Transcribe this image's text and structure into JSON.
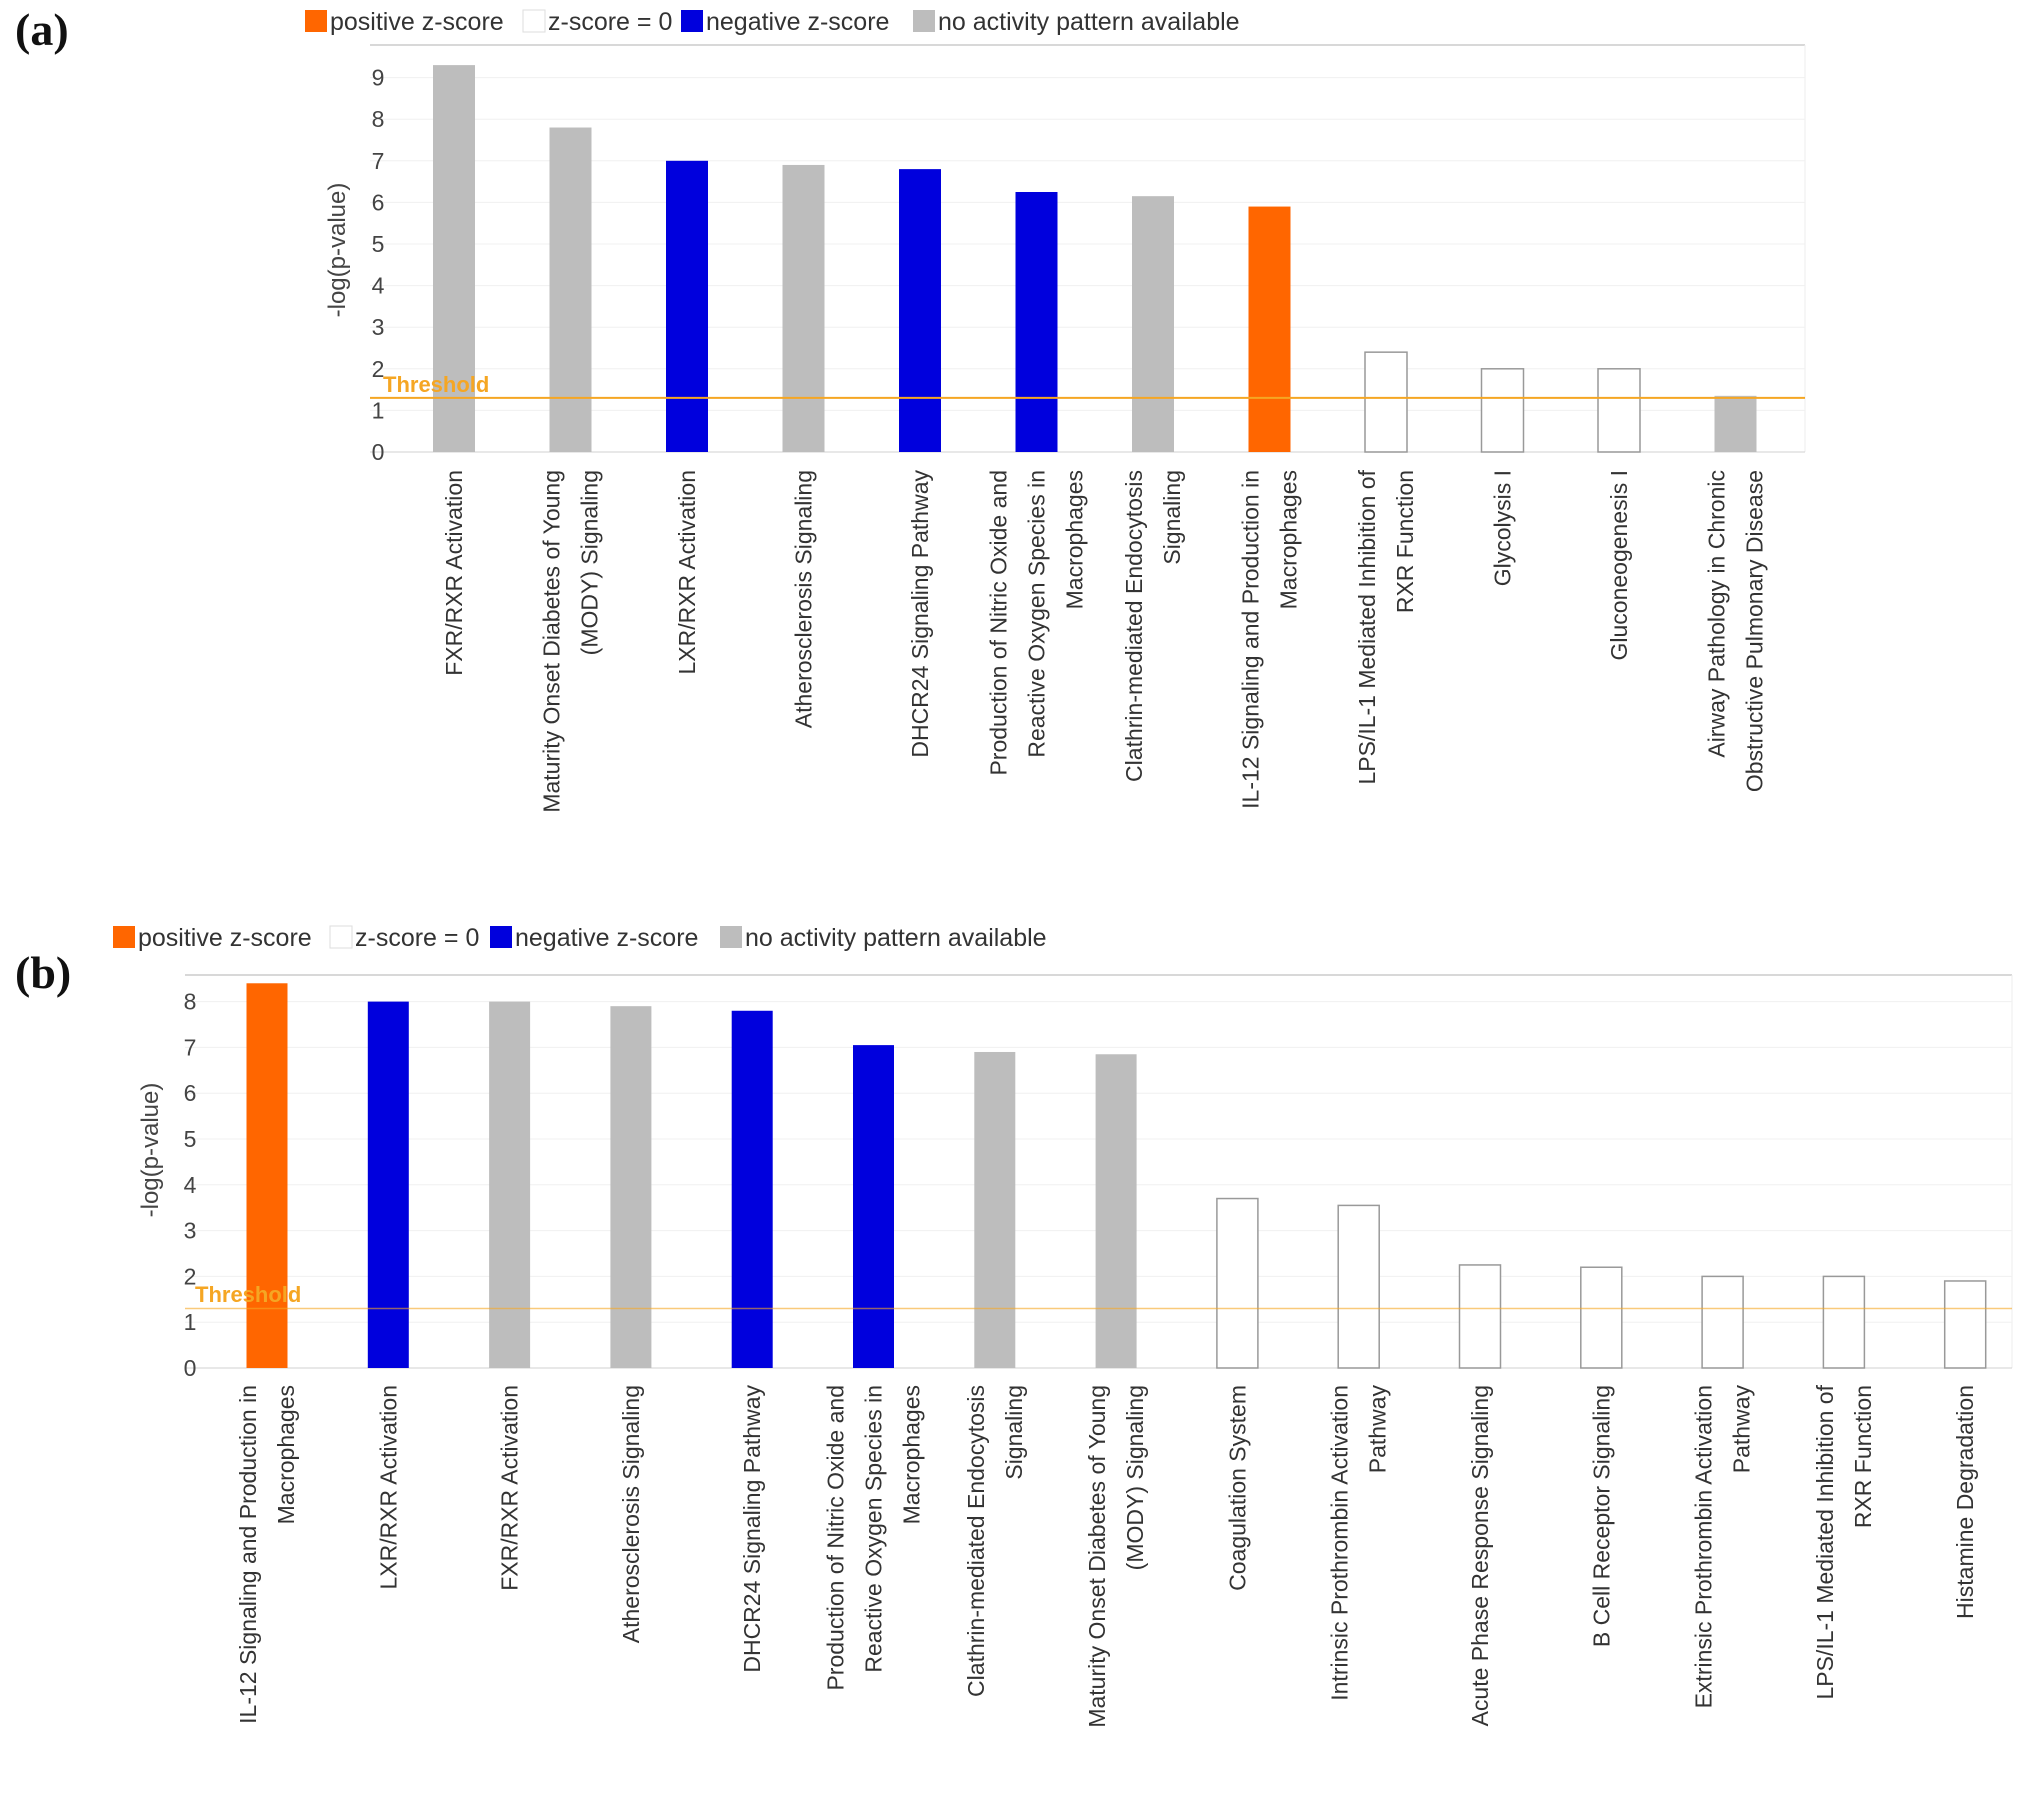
{
  "colors": {
    "positive": "#ff6600",
    "negative": "#0000dd",
    "none": "#bdbdbd",
    "zero_fill": "#ffffff",
    "zero_stroke": "#999999",
    "threshold": "#f5a623"
  },
  "chart_data": [
    {
      "panel_label": "(a)",
      "type": "bar",
      "legend": [
        {
          "key": "positive",
          "label": "positive z-score"
        },
        {
          "key": "zero",
          "label": "z-score = 0"
        },
        {
          "key": "negative",
          "label": "negative z-score"
        },
        {
          "key": "none",
          "label": "no activity pattern available"
        }
      ],
      "ylabel": "-log(p-value)",
      "ylim": [
        0,
        9.5
      ],
      "yticks": [
        "0",
        "1",
        "2",
        "3",
        "4",
        "5",
        "6",
        "7",
        "8",
        "9"
      ],
      "threshold": {
        "value": 1.3,
        "label": "Threshold"
      },
      "categories": [
        {
          "lines": [
            "FXR/RXR Activation"
          ],
          "value": 9.3,
          "z": "none"
        },
        {
          "lines": [
            "Maturity Onset Diabetes of Young",
            "(MODY) Signaling"
          ],
          "value": 7.8,
          "z": "none"
        },
        {
          "lines": [
            "LXR/RXR Activation"
          ],
          "value": 7.0,
          "z": "negative"
        },
        {
          "lines": [
            "Atherosclerosis Signaling"
          ],
          "value": 6.9,
          "z": "none"
        },
        {
          "lines": [
            "DHCR24 Signaling Pathway"
          ],
          "value": 6.8,
          "z": "negative"
        },
        {
          "lines": [
            "Production of Nitric Oxide and",
            "Reactive Oxygen Species in",
            "Macrophages"
          ],
          "value": 6.25,
          "z": "negative"
        },
        {
          "lines": [
            "Clathrin-mediated Endocytosis",
            "Signaling"
          ],
          "value": 6.15,
          "z": "none"
        },
        {
          "lines": [
            "IL-12 Signaling and Production in",
            "Macrophages"
          ],
          "value": 5.9,
          "z": "positive"
        },
        {
          "lines": [
            "LPS/IL-1 Mediated Inhibition of",
            "RXR Function"
          ],
          "value": 2.4,
          "z": "zero"
        },
        {
          "lines": [
            "Glycolysis I"
          ],
          "value": 2.0,
          "z": "zero"
        },
        {
          "lines": [
            "Gluconeogenesis I"
          ],
          "value": 2.0,
          "z": "zero"
        },
        {
          "lines": [
            "Airway Pathology in Chronic",
            "Obstructive Pulmonary Disease"
          ],
          "value": 1.35,
          "z": "none"
        }
      ]
    },
    {
      "panel_label": "(b)",
      "type": "bar",
      "legend": [
        {
          "key": "positive",
          "label": "positive z-score"
        },
        {
          "key": "zero",
          "label": "z-score = 0"
        },
        {
          "key": "negative",
          "label": "negative z-score"
        },
        {
          "key": "none",
          "label": "no activity pattern available"
        }
      ],
      "ylabel": "-log(p-value)",
      "ylim": [
        0,
        8.5
      ],
      "yticks": [
        "0",
        "1",
        "2",
        "3",
        "4",
        "5",
        "6",
        "7",
        "8"
      ],
      "threshold": {
        "value": 1.3,
        "label": "Threshold"
      },
      "categories": [
        {
          "lines": [
            "IL-12 Signaling and Production in",
            "Macrophages"
          ],
          "value": 8.4,
          "z": "positive"
        },
        {
          "lines": [
            "LXR/RXR Activation"
          ],
          "value": 8.0,
          "z": "negative"
        },
        {
          "lines": [
            "FXR/RXR Activation"
          ],
          "value": 8.0,
          "z": "none"
        },
        {
          "lines": [
            "Atherosclerosis Signaling"
          ],
          "value": 7.9,
          "z": "none"
        },
        {
          "lines": [
            "DHCR24 Signaling Pathway"
          ],
          "value": 7.8,
          "z": "negative"
        },
        {
          "lines": [
            "Production of Nitric Oxide and",
            "Reactive Oxygen Species in",
            "Macrophages"
          ],
          "value": 7.05,
          "z": "negative"
        },
        {
          "lines": [
            "Clathrin-mediated Endocytosis",
            "Signaling"
          ],
          "value": 6.9,
          "z": "none"
        },
        {
          "lines": [
            "Maturity Onset Diabetes of Young",
            "(MODY) Signaling"
          ],
          "value": 6.85,
          "z": "none"
        },
        {
          "lines": [
            "Coagulation System"
          ],
          "value": 3.7,
          "z": "zero"
        },
        {
          "lines": [
            "Intrinsic Prothrombin Activation",
            "Pathway"
          ],
          "value": 3.55,
          "z": "zero"
        },
        {
          "lines": [
            "Acute Phase Response Signaling"
          ],
          "value": 2.25,
          "z": "zero"
        },
        {
          "lines": [
            "B Cell Receptor Signaling"
          ],
          "value": 2.2,
          "z": "zero"
        },
        {
          "lines": [
            "Extrinsic Prothrombin Activation",
            "Pathway"
          ],
          "value": 2.0,
          "z": "zero"
        },
        {
          "lines": [
            "LPS/IL-1 Mediated Inhibition of",
            "RXR Function"
          ],
          "value": 2.0,
          "z": "zero"
        },
        {
          "lines": [
            "Histamine Degradation"
          ],
          "value": 1.9,
          "z": "zero"
        }
      ]
    }
  ]
}
